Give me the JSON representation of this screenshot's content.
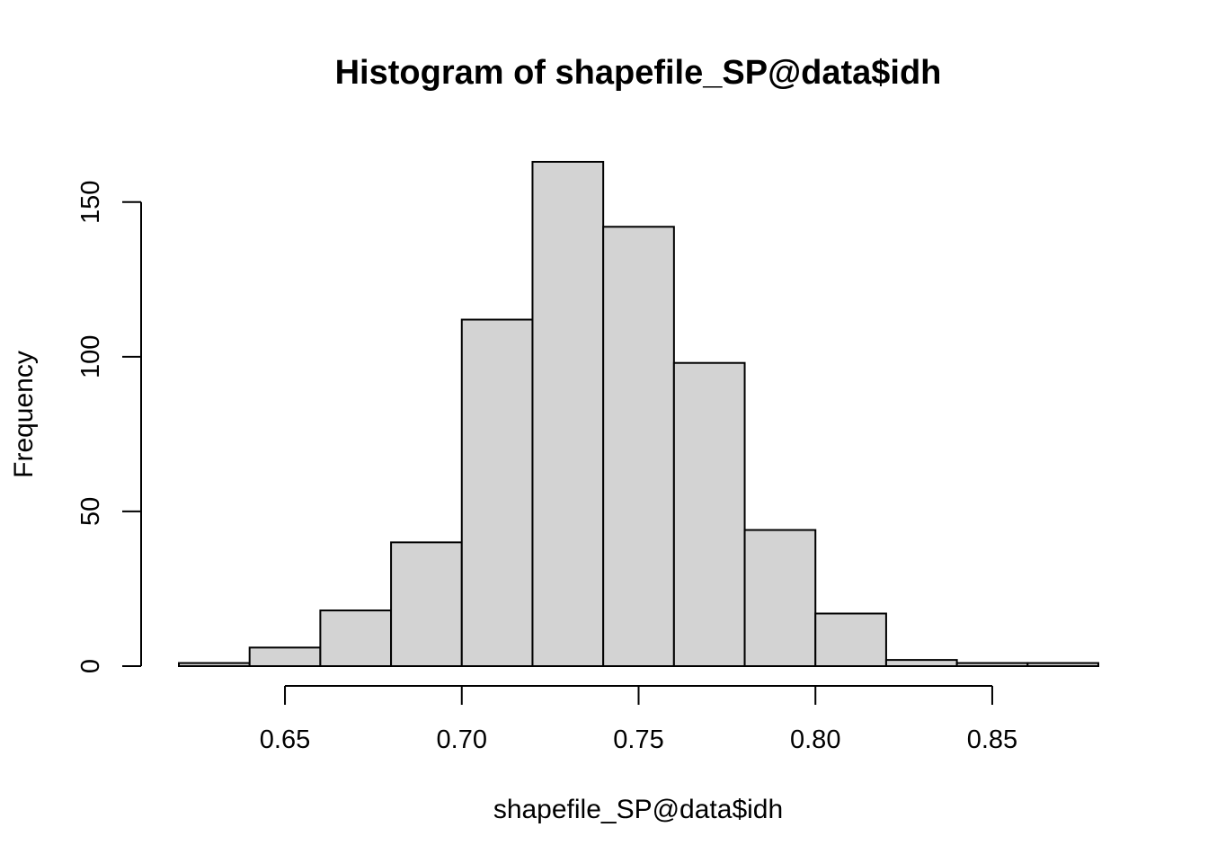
{
  "chart_data": {
    "type": "bar",
    "title": "Histogram of shapefile_SP@data$idh",
    "xlabel": "shapefile_SP@data$idh",
    "ylabel": "Frequency",
    "bins": [
      {
        "start": 0.62,
        "end": 0.64,
        "count": 1
      },
      {
        "start": 0.64,
        "end": 0.66,
        "count": 6
      },
      {
        "start": 0.66,
        "end": 0.68,
        "count": 18
      },
      {
        "start": 0.68,
        "end": 0.7,
        "count": 40
      },
      {
        "start": 0.7,
        "end": 0.72,
        "count": 112
      },
      {
        "start": 0.72,
        "end": 0.74,
        "count": 163
      },
      {
        "start": 0.74,
        "end": 0.76,
        "count": 142
      },
      {
        "start": 0.76,
        "end": 0.78,
        "count": 98
      },
      {
        "start": 0.78,
        "end": 0.8,
        "count": 44
      },
      {
        "start": 0.8,
        "end": 0.82,
        "count": 17
      },
      {
        "start": 0.82,
        "end": 0.84,
        "count": 2
      },
      {
        "start": 0.84,
        "end": 0.86,
        "count": 1
      },
      {
        "start": 0.86,
        "end": 0.88,
        "count": 1
      }
    ],
    "xticks": [
      {
        "value": 0.65,
        "label": "0.65"
      },
      {
        "value": 0.7,
        "label": "0.70"
      },
      {
        "value": 0.75,
        "label": "0.75"
      },
      {
        "value": 0.8,
        "label": "0.80"
      },
      {
        "value": 0.85,
        "label": "0.85"
      }
    ],
    "yticks": [
      {
        "value": 0,
        "label": "0"
      },
      {
        "value": 50,
        "label": "50"
      },
      {
        "value": 100,
        "label": "100"
      },
      {
        "value": 150,
        "label": "150"
      }
    ],
    "xlim": [
      0.62,
      0.88
    ],
    "ylim": [
      0,
      163
    ],
    "grid": false,
    "bar_fill": "#d3d3d3",
    "bar_stroke": "#000000"
  }
}
